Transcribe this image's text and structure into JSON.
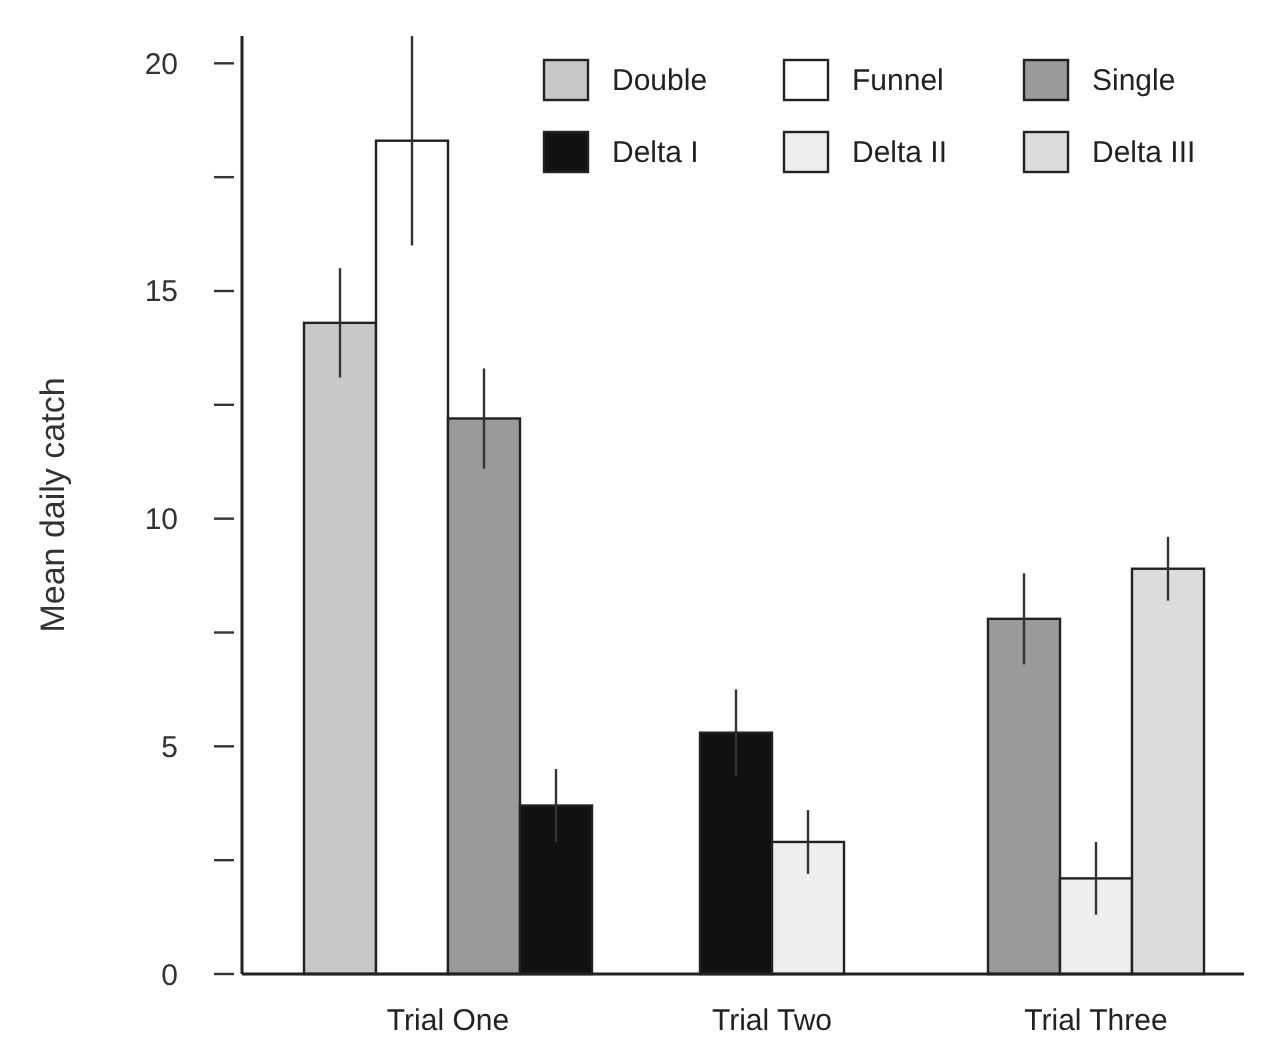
{
  "chart_data": {
    "type": "bar",
    "ylabel": "Mean daily catch",
    "categories": [
      "Trial One",
      "Trial Two",
      "Trial Three"
    ],
    "series": [
      {
        "name": "Double",
        "color": "#c8c8c8",
        "values": [
          14.3,
          null,
          null
        ],
        "errors": [
          1.2,
          null,
          null
        ]
      },
      {
        "name": "Funnel",
        "color": "#ffffff",
        "values": [
          18.3,
          null,
          null
        ],
        "errors": [
          2.3,
          null,
          null
        ]
      },
      {
        "name": "Single",
        "color": "#9a9a9a",
        "values": [
          12.2,
          null,
          7.8
        ],
        "errors": [
          1.1,
          null,
          1.0
        ]
      },
      {
        "name": "Delta I",
        "color": "#111111",
        "values": [
          3.7,
          5.3,
          null
        ],
        "errors": [
          0.8,
          0.95,
          null
        ]
      },
      {
        "name": "Delta II",
        "color": "#eeeeee",
        "values": [
          null,
          2.9,
          2.1
        ],
        "errors": [
          null,
          0.7,
          0.8
        ]
      },
      {
        "name": "Delta III",
        "color": "#dcdcdc",
        "values": [
          null,
          null,
          8.9
        ],
        "errors": [
          null,
          null,
          0.7
        ]
      }
    ],
    "ylim": [
      0,
      20.6
    ],
    "yticks": [
      0,
      {
        "value": 2.5,
        "label": null
      },
      5,
      {
        "value": 7.5,
        "label": null
      },
      10,
      {
        "value": 12.5,
        "label": null
      },
      15,
      {
        "value": 17.5,
        "label": null
      },
      20
    ],
    "grid": false,
    "legend": "top right"
  }
}
